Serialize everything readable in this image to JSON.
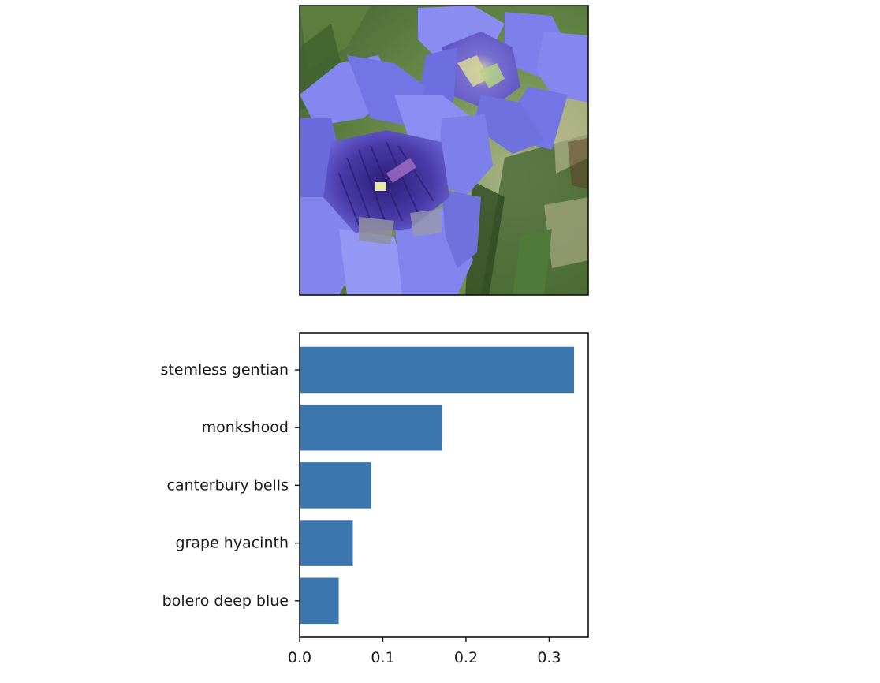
{
  "figure": {
    "image_panel": {
      "subject": "purple-blue gentian flowers photo",
      "colors": {
        "petal": "#7b7de8",
        "petal_light": "#9a9cf2",
        "petal_dark": "#4b3fb5",
        "throat": "#3a2a8c",
        "foliage": "#4f7a3a",
        "foliage_dark": "#2f4d24",
        "background": "#8da36a"
      }
    },
    "chart_data": {
      "type": "bar",
      "orientation": "horizontal",
      "categories": [
        "stemless gentian",
        "monkshood",
        "canterbury bells",
        "grape hyacinth",
        "bolero deep blue"
      ],
      "values": [
        0.33,
        0.171,
        0.086,
        0.064,
        0.047
      ],
      "xticks": [
        "0.0",
        "0.1",
        "0.2",
        "0.3"
      ],
      "xtick_values": [
        0.0,
        0.1,
        0.2,
        0.3
      ],
      "xlim": [
        0,
        0.347
      ],
      "title": "",
      "xlabel": "",
      "ylabel": "",
      "grid": false,
      "bar_color": "#3b76af"
    }
  }
}
